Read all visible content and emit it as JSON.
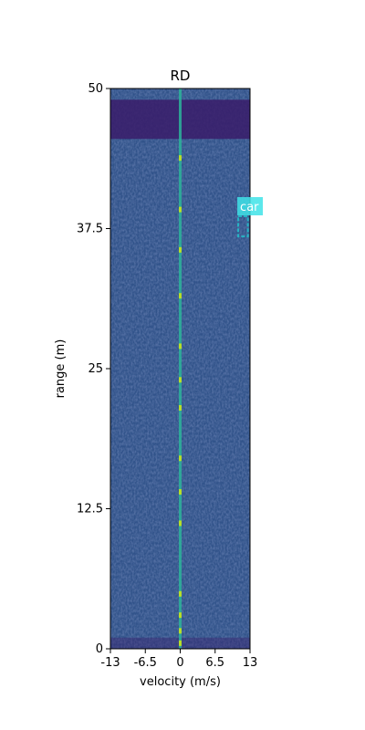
{
  "chart_data": {
    "type": "heatmap",
    "title": "RD",
    "xlabel": "velocity (m/s)",
    "ylabel": "range (m)",
    "xlim": [
      -13,
      13
    ],
    "ylim": [
      0,
      50
    ],
    "x_ticks": [
      -13,
      -6.5,
      0,
      6.5,
      13
    ],
    "x_tick_labels": [
      "-13",
      "-6.5",
      "0",
      "6.5",
      "13"
    ],
    "y_ticks": [
      0,
      12.5,
      25,
      37.5,
      50
    ],
    "y_tick_labels": [
      "0",
      "12.5",
      "25",
      "37.5",
      "50"
    ],
    "colormap": "viridis",
    "background_color": "#31538a",
    "low_band": {
      "range_from": 45.5,
      "range_to": 49,
      "color": "#3a1c6a"
    },
    "zero_doppler_line": {
      "velocity": 0,
      "color": "#2db39a"
    },
    "annotations": [
      {
        "label": "car",
        "velocity_min": 10.8,
        "velocity_max": 12.6,
        "range_min": 36.8,
        "range_max": 38.6,
        "label_bg": "#3fe3e8",
        "box_color": "#27b3c4"
      }
    ]
  }
}
